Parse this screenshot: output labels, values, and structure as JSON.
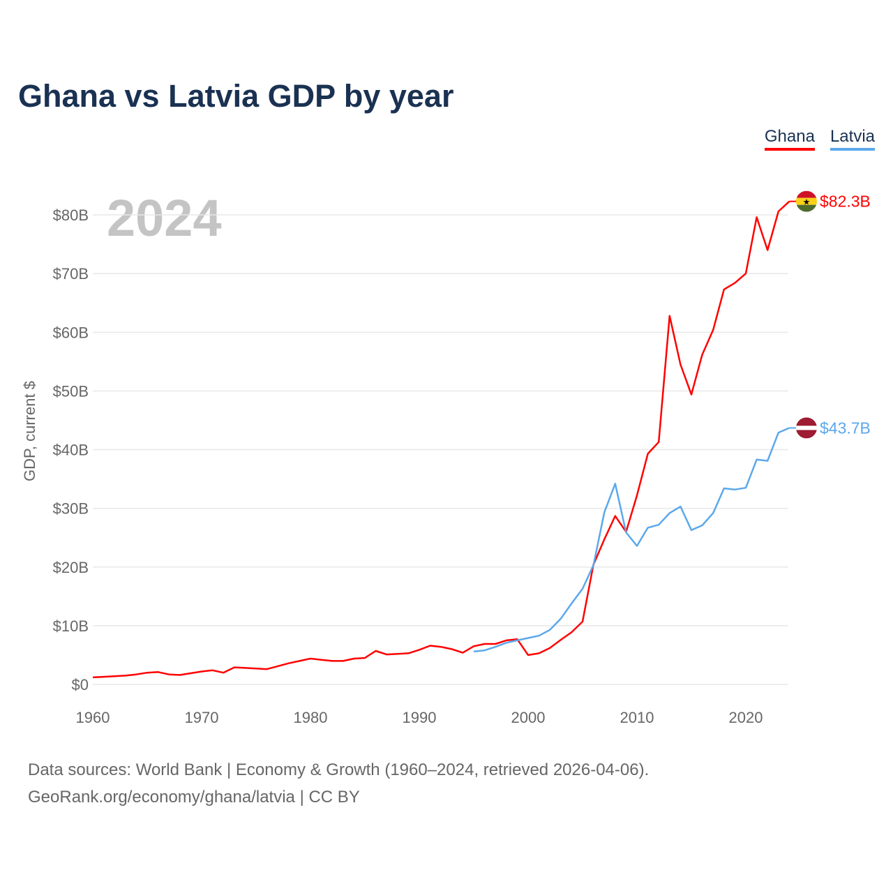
{
  "chart_data": {
    "type": "line",
    "title": "Ghana vs Latvia GDP by year",
    "ylabel": "GDP, current $",
    "xlabel": "",
    "xlim": [
      1960,
      2024
    ],
    "ylim": [
      0,
      80
    ],
    "x_ticks": [
      1960,
      1970,
      1980,
      1990,
      2000,
      2010,
      2020
    ],
    "y_ticks": [
      0,
      10,
      20,
      30,
      40,
      50,
      60,
      70,
      80
    ],
    "y_tick_labels": [
      "$0",
      "$10B",
      "$20B",
      "$30B",
      "$40B",
      "$50B",
      "$60B",
      "$70B",
      "$80B"
    ],
    "grid": true,
    "legend_placement": "top-right",
    "year_label": "2024",
    "series": [
      {
        "name": "Ghana",
        "color": "#ff0000",
        "start": 1960,
        "end_label": "$82.3B",
        "values": [
          1.2,
          1.3,
          1.4,
          1.5,
          1.7,
          2.0,
          2.1,
          1.7,
          1.6,
          1.9,
          2.2,
          2.4,
          2.0,
          2.9,
          2.8,
          2.7,
          2.6,
          3.1,
          3.6,
          4.0,
          4.4,
          4.2,
          4.0,
          4.0,
          4.4,
          4.5,
          5.7,
          5.1,
          5.2,
          5.3,
          5.9,
          6.6,
          6.4,
          6.0,
          5.4,
          6.5,
          6.9,
          6.9,
          7.5,
          7.7,
          5.0,
          5.3,
          6.2,
          7.6,
          8.9,
          10.7,
          20.4,
          24.7,
          28.7,
          26.0,
          32.2,
          39.3,
          41.3,
          62.8,
          54.5,
          49.4,
          56.2,
          60.4,
          67.3,
          68.4,
          70.0,
          79.6,
          74.0,
          80.6,
          82.3
        ]
      },
      {
        "name": "Latvia",
        "color": "#5ba8ec",
        "start": 1995,
        "end_label": "$43.7B",
        "values": [
          5.6,
          5.8,
          6.4,
          7.1,
          7.5,
          7.9,
          8.3,
          9.3,
          11.2,
          13.8,
          16.3,
          20.3,
          29.3,
          34.2,
          25.9,
          23.6,
          26.7,
          27.2,
          29.2,
          30.3,
          26.3,
          27.1,
          29.2,
          33.4,
          33.2,
          33.5,
          38.3,
          38.1,
          42.9,
          43.7
        ]
      }
    ]
  },
  "footer": {
    "line1": "Data sources: World Bank | Economy & Growth (1960–2024, retrieved 2026-04-06).",
    "line2": "GeoRank.org/economy/ghana/latvia | CC BY"
  }
}
